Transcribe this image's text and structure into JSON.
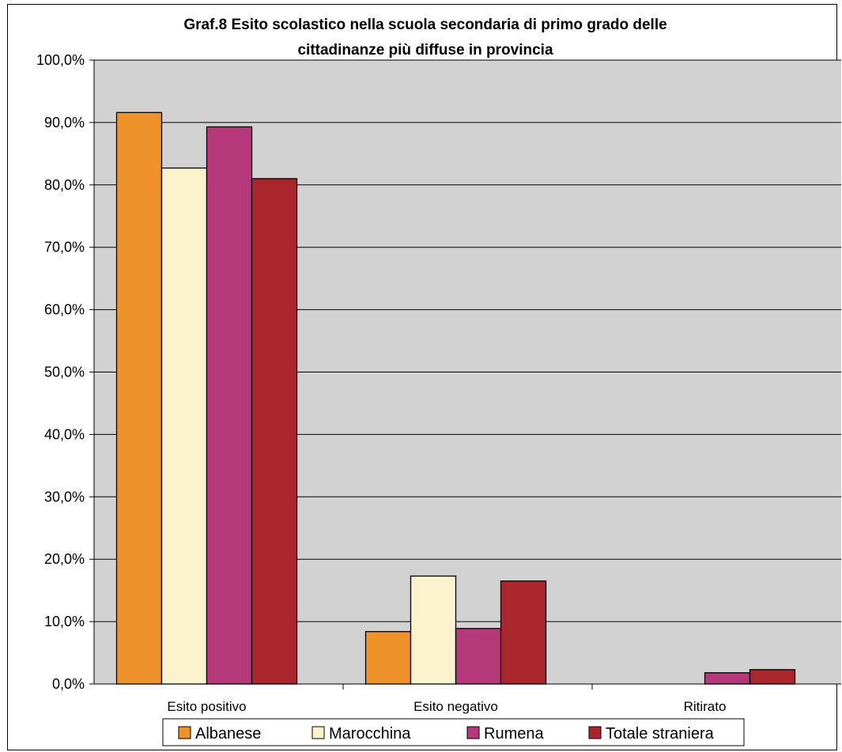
{
  "chart_data": {
    "type": "bar",
    "title_lines": [
      "Graf.8 Esito scolastico nella scuola secondaria di primo grado delle",
      "cittadinanze più diffuse in provincia"
    ],
    "categories": [
      "Esito positivo",
      "Esito negativo",
      "Ritirato"
    ],
    "series": [
      {
        "name": "Albanese",
        "color": "#f0922a",
        "values": [
          91.6,
          8.4,
          0.0
        ]
      },
      {
        "name": "Marocchina",
        "color": "#fbf1cd",
        "values": [
          82.7,
          17.3,
          0.0
        ]
      },
      {
        "name": "Rumena",
        "color": "#b5397a",
        "values": [
          89.3,
          8.9,
          1.8
        ]
      },
      {
        "name": "Totale straniera",
        "color": "#aa262d",
        "values": [
          81.0,
          16.5,
          2.3
        ]
      }
    ],
    "y_ticks": [
      "0,0%",
      "10,0%",
      "20,0%",
      "30,0%",
      "40,0%",
      "50,0%",
      "60,0%",
      "70,0%",
      "80,0%",
      "90,0%",
      "100,0%"
    ],
    "ylim": [
      0,
      100
    ],
    "grid": true,
    "plot_background": "#d2d2d2",
    "legend_position": "bottom"
  }
}
